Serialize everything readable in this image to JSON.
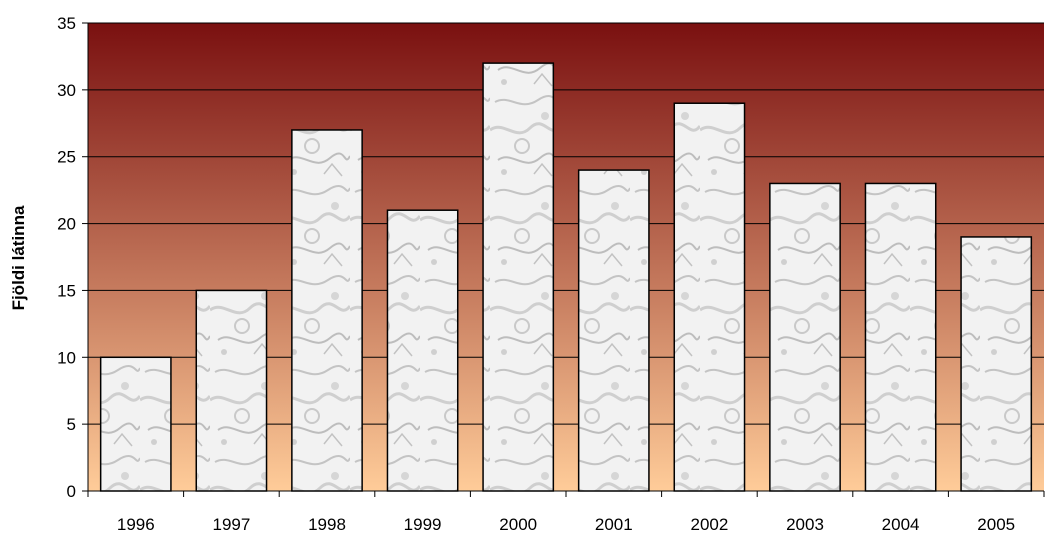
{
  "chart_data": {
    "type": "bar",
    "categories": [
      "1996",
      "1997",
      "1998",
      "1999",
      "2000",
      "2001",
      "2002",
      "2003",
      "2004",
      "2005"
    ],
    "values": [
      10,
      15,
      27,
      21,
      32,
      24,
      29,
      23,
      23,
      19
    ],
    "title": "",
    "xlabel": "",
    "ylabel": "Fjöldi látinna",
    "ylim": [
      0,
      35
    ],
    "yticks": [
      "0",
      "5",
      "10",
      "15",
      "20",
      "25",
      "30",
      "35"
    ],
    "grid": true,
    "legend": "none",
    "colors": {
      "background_top": "#7a1010",
      "background_bottom": "#ffcc99",
      "bar_fill": "#f2f2f2",
      "bar_texture": "#c8c8c8",
      "bar_edge": "#000000",
      "gridline": "#000000"
    }
  }
}
